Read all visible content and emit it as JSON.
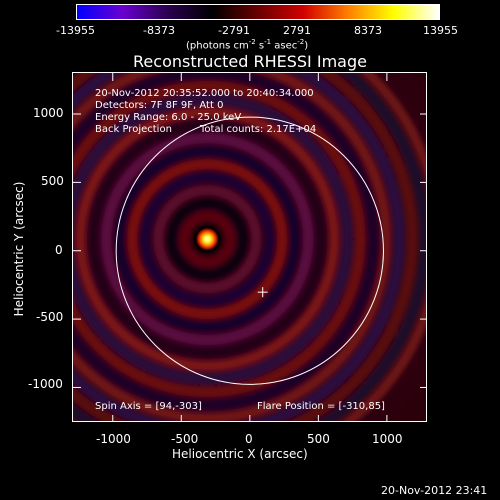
{
  "colorbar": {
    "ticks": [
      "-13955",
      "-8373",
      "-2791",
      "2791",
      "8373",
      "13955"
    ],
    "units": {
      "pre": "(photons cm",
      "e1": "-2",
      "mid1": " s",
      "e2": "-1",
      "mid2": " asec",
      "e3": "-2",
      "post": ")"
    },
    "colors": [
      "#0000ff",
      "#6a00d0",
      "#2a0050",
      "#000000",
      "#6a0000",
      "#d00000",
      "#ff8000",
      "#ffff00",
      "#ffffff"
    ]
  },
  "image": {
    "title": "Reconstructed RHESSI Image",
    "header": {
      "time_range": "20-Nov-2012 20:35:52.000 to 20:40:34.000",
      "detectors": "Detectors: 7F 8F 9F, Att 0",
      "energy": "Energy Range: 6.0 - 25.0 keV",
      "method": "Back Projection",
      "counts": "Total counts: 2.17E+04"
    },
    "footer": {
      "spin_axis": "Spin Axis = [94,-303]",
      "flare_position": "Flare Position = [-310,85]"
    },
    "timestamp": "20-Nov-2012 23:41"
  },
  "axes": {
    "x_label": "Heliocentric X (arcsec)",
    "y_label": "Heliocentric Y (arcsec)",
    "x_ticks": [
      "-1000",
      "-500",
      "0",
      "500",
      "1000"
    ],
    "y_ticks": [
      "1000",
      "500",
      "0",
      "-500",
      "-1000"
    ],
    "x_range": [
      -1290,
      1300
    ],
    "y_range": [
      -1260,
      1300
    ]
  },
  "overlay": {
    "solar_limb_radius_arcsec": 975,
    "source_position": [
      -310,
      85
    ],
    "spin_axis_position": [
      94,
      -303
    ]
  }
}
